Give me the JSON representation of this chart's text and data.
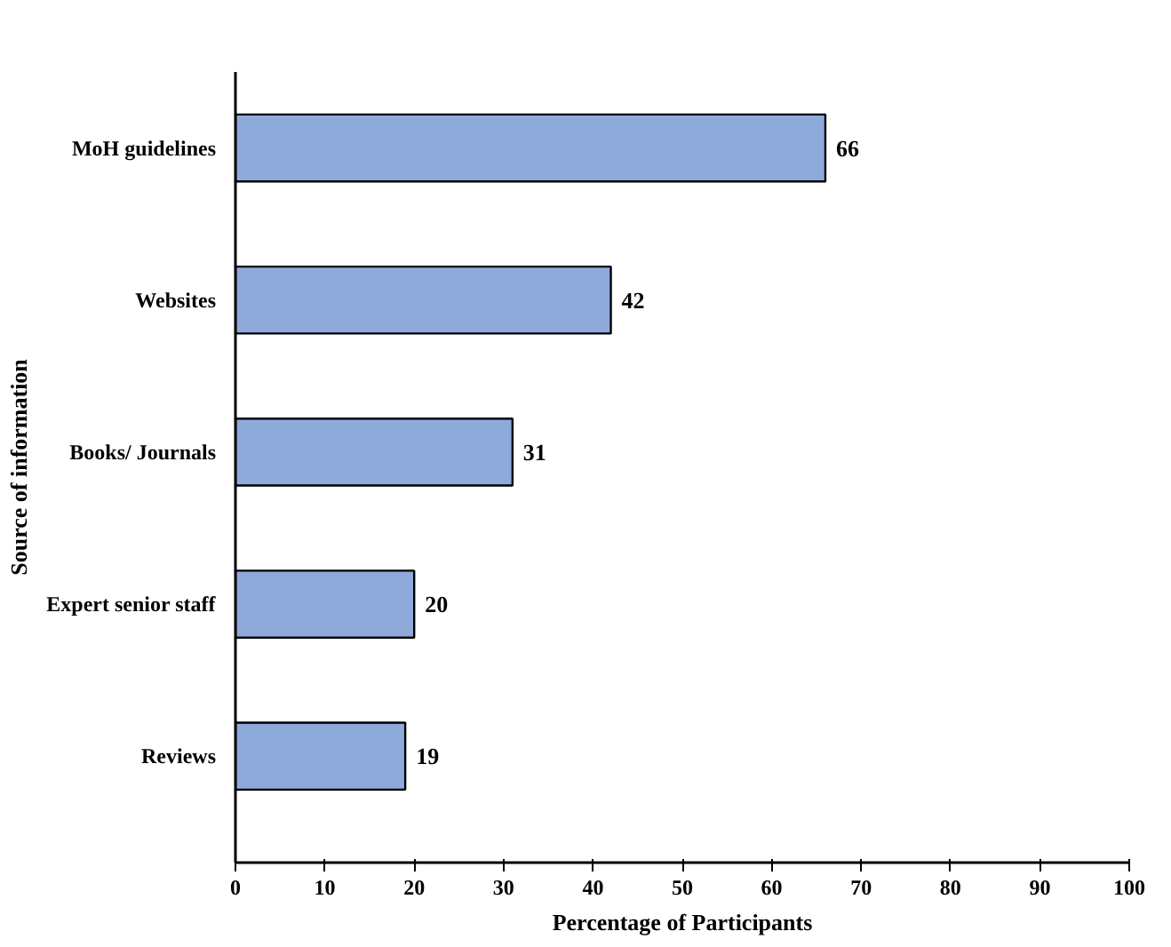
{
  "chart_data": {
    "type": "bar",
    "orientation": "horizontal",
    "xlabel": "Percentage of Participants",
    "ylabel": "Source of information",
    "categories": [
      "MoH guidelines",
      "Websites",
      "Books/ Journals",
      "Expert senior staff",
      "Reviews"
    ],
    "values": [
      66,
      42,
      31,
      20,
      19
    ],
    "color": "#8eaadb",
    "data_labels": true,
    "xlim": [
      0,
      100
    ],
    "xticks": [
      0,
      10,
      20,
      30,
      40,
      50,
      60,
      70,
      80,
      90,
      100
    ],
    "grid": false
  }
}
